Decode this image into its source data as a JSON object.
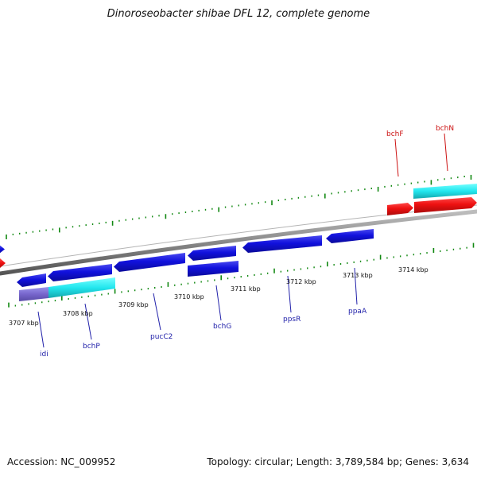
{
  "title": "Dinoroseobacter shibae DFL 12, complete genome",
  "footer": {
    "accession": "Accession: NC_009952",
    "summary": "Topology: circular; Length: 3,789,584 bp; Genes: 3,634"
  },
  "colors": {
    "forward_cds": "#ee1111",
    "reverse_cds": "#1111dd",
    "rna_or_pseudo_band": "#22e6ee",
    "faded_reverse": "#7766cc",
    "backbone": "#888888",
    "tick_green": "#118811",
    "forward_label": "#cc1111",
    "reverse_label": "#2222aa"
  },
  "scale": {
    "ticks": [
      "3707 kbp",
      "3708 kbp",
      "3709 kbp",
      "3710 kbp",
      "3711 kbp",
      "3712 kbp",
      "3713 kbp",
      "3714 kbp"
    ]
  },
  "genes": {
    "forward": [
      "bchF",
      "bchN"
    ],
    "reverse": [
      "idi",
      "bchP",
      "pucC2",
      "bchG",
      "ppsR",
      "ppaA"
    ]
  }
}
